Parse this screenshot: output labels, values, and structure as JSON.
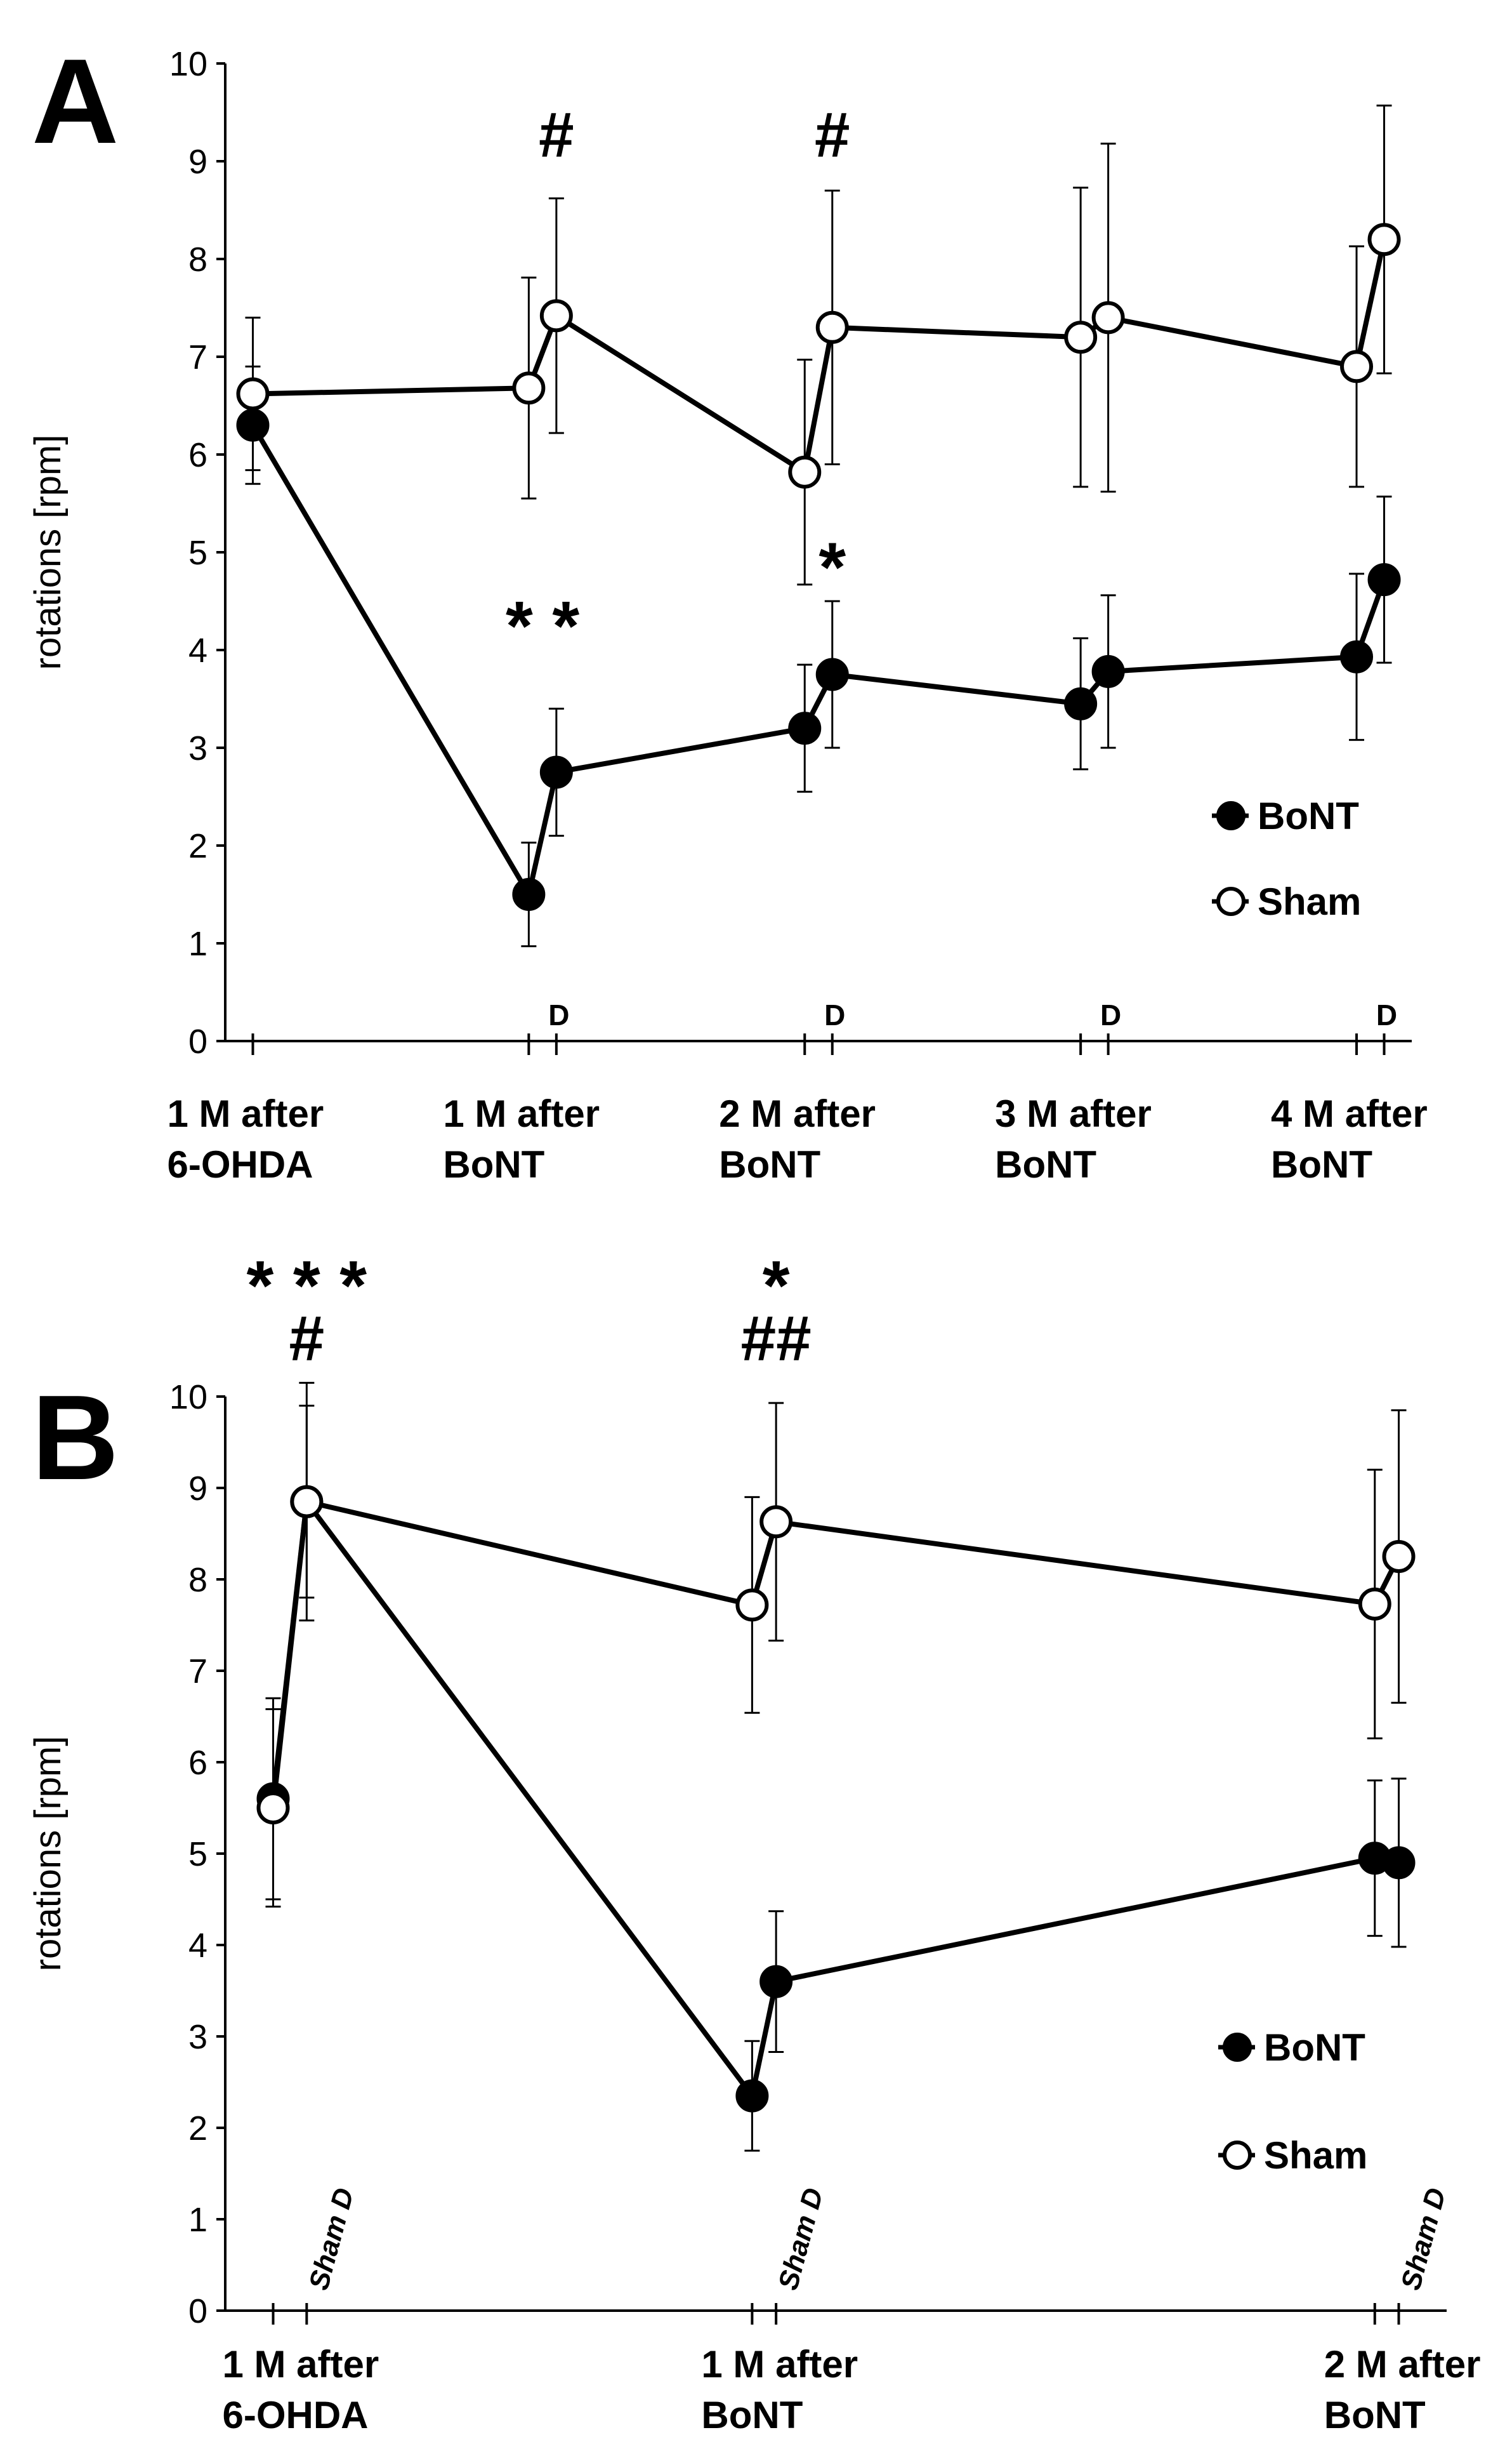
{
  "chart_data": [
    {
      "type": "line",
      "panel_label": "A",
      "ylabel": "rotations [rpm]",
      "ylim": [
        0,
        10
      ],
      "yticks": [
        0,
        1,
        2,
        3,
        4,
        5,
        6,
        7,
        8,
        9,
        10
      ],
      "category_labels": [
        {
          "line1": "1 M after",
          "line2": "6-OHDA",
          "x": 0
        },
        {
          "line1": "1 M after",
          "line2": "BoNT",
          "x": 1
        },
        {
          "line1": "2 M after",
          "line2": "BoNT",
          "x": 2
        },
        {
          "line1": "3 M after",
          "line2": "BoNT",
          "x": 3
        },
        {
          "line1": "4 M after",
          "line2": "BoNT",
          "x": 4
        }
      ],
      "x_ticks": [
        0,
        1,
        1.1,
        2,
        2.1,
        3,
        3.1,
        4,
        4.1
      ],
      "markers": [
        {
          "text": "D",
          "x": 1.1
        },
        {
          "text": "D",
          "x": 2.1
        },
        {
          "text": "D",
          "x": 3.1
        },
        {
          "text": "D",
          "x": 4.1
        }
      ],
      "series": [
        {
          "name": "BoNT",
          "fill": "#000000",
          "x": [
            0,
            1,
            1.1,
            2,
            2.1,
            3,
            3.1,
            4,
            4.1
          ],
          "y": [
            6.3,
            1.5,
            2.75,
            3.2,
            3.75,
            3.45,
            3.78,
            3.93,
            4.72
          ],
          "err": [
            0.6,
            0.53,
            0.65,
            0.65,
            0.75,
            0.67,
            0.78,
            0.85,
            0.85
          ]
        },
        {
          "name": "Sham",
          "fill": "#ffffff",
          "x": [
            0,
            1,
            1.1,
            2,
            2.1,
            3,
            3.1,
            4,
            4.1
          ],
          "y": [
            6.62,
            6.68,
            7.42,
            5.82,
            7.3,
            7.2,
            7.4,
            6.9,
            8.2
          ],
          "err": [
            0.78,
            1.13,
            1.2,
            1.15,
            1.4,
            1.53,
            1.78,
            1.23,
            1.37
          ]
        }
      ],
      "annotations": [
        {
          "text": "#",
          "x": 1.1,
          "y": 9.05,
          "size": 100
        },
        {
          "text": "#",
          "x": 2.1,
          "y": 9.05,
          "size": 100
        },
        {
          "text": "* *",
          "x": 1.05,
          "y": 4.0,
          "size": 110
        },
        {
          "text": "*",
          "x": 2.1,
          "y": 4.6,
          "size": 110
        }
      ],
      "legend": {
        "position": "right",
        "entries": [
          "BoNT",
          "Sham"
        ]
      }
    },
    {
      "type": "line",
      "panel_label": "B",
      "ylabel": "rotations [rpm]",
      "ylim": [
        0,
        10
      ],
      "yticks": [
        0,
        1,
        2,
        3,
        4,
        5,
        6,
        7,
        8,
        9,
        10
      ],
      "category_labels": [
        {
          "line1": "1 M after",
          "line2": "6-OHDA",
          "x": 0
        },
        {
          "line1": "1 M after",
          "line2": "BoNT",
          "x": 1
        },
        {
          "line1": "2 M after",
          "line2": "BoNT",
          "x": 2.3
        }
      ],
      "x_ticks": [
        0,
        0.07,
        1,
        1.05,
        2.3,
        2.35
      ],
      "markers": [
        {
          "text": "Sham D",
          "x": 0.07
        },
        {
          "text": "Sham D",
          "x": 1.05
        },
        {
          "text": "Sham D",
          "x": 2.35
        }
      ],
      "series": [
        {
          "name": "BoNT",
          "fill": "#000000",
          "x": [
            0,
            0.07,
            1,
            1.05,
            2.3,
            2.35
          ],
          "y": [
            5.6,
            8.85,
            2.35,
            3.6,
            4.95,
            4.9
          ],
          "err": [
            1.1,
            1.05,
            0.6,
            0.77,
            0.85,
            0.92
          ]
        },
        {
          "name": "Sham",
          "fill": "#ffffff",
          "x": [
            0,
            0.07,
            1,
            1.05,
            2.3,
            2.35
          ],
          "y": [
            5.5,
            8.85,
            7.72,
            8.63,
            7.73,
            8.25
          ],
          "err": [
            1.08,
            1.3,
            1.18,
            1.3,
            1.47,
            1.6
          ]
        }
      ],
      "annotations": [
        {
          "text": "* * *",
          "x": 0.07,
          "y": 10.95,
          "size": 110
        },
        {
          "text": "#",
          "x": 0.07,
          "y": 10.4,
          "size": 100
        },
        {
          "text": "*",
          "x": 1.05,
          "y": 10.95,
          "size": 110
        },
        {
          "text": "##",
          "x": 1.05,
          "y": 10.4,
          "size": 100
        }
      ],
      "legend": {
        "position": "right",
        "entries": [
          "BoNT",
          "Sham"
        ]
      }
    }
  ]
}
